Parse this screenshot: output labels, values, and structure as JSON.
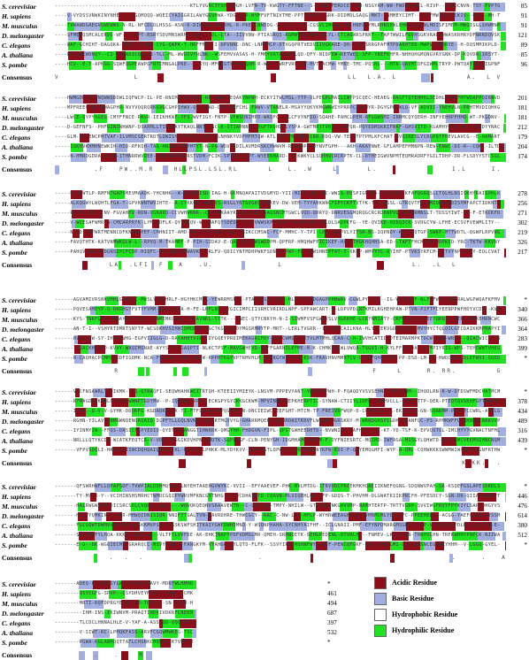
{
  "colors": {
    "acidic": "#8b0f1a",
    "basic": "#a2aee0",
    "hydrophobic": "#ffffff",
    "hydrophilic": "#22e022"
  },
  "species": [
    "S. cerevisiae",
    "H. sapiens",
    "M. musculus",
    "D. melongaster",
    "C. elegans",
    "A. thaliana",
    "S. pombe"
  ],
  "consensus_label": "Consensus",
  "blocks": [
    {
      "numbers": [
        "85",
        "91",
        "91",
        "121",
        "89",
        "85",
        "96"
      ],
      "consensus_text": "V               L                                          LL  L.A. L              A.  L V   ...LGWALG   W   L    .LL   ..LV..P"
    },
    {
      "numbers": [
        "201",
        "181",
        "181",
        "212",
        "179",
        "204",
        "174"
      ],
      "consensus_text": "        .F   PW..M.R    HLLPSL.LSL.RL      L   L. .W    L      L.               I.L     I.  IFL.L.R   F"
    },
    {
      "numbers": [
        "278",
        "256",
        "271",
        "302",
        "219",
        "326",
        "217"
      ],
      "consensus_text": "           LA  .LFI  F   A   .U.             L                          L.  .L  L"
    },
    {
      "numbers": [
        "*",
        "340",
        "366",
        "364",
        "283",
        "399",
        "*"
      ],
      "consensus_text": "            R                                                   F    L     R. RR.        G   P"
    },
    {
      "numbers": [
        "*",
        "378",
        "434",
        "489",
        "316",
        "439",
        "*"
      ],
      "consensus_text": "                                                                                  K KK.  ."
    },
    {
      "numbers": [
        "*",
        "446",
        "476",
        "614",
        "380",
        "512",
        "*"
      ],
      "consensus_text": "           .  .  .                       .                                      .     .   A."
    },
    {
      "numbers": [
        "*",
        "461",
        "494",
        "687",
        "397",
        "532",
        "*"
      ],
      "consensus_text": "        .   .    R"
    }
  ],
  "legend": [
    {
      "label": "Acidic Residue",
      "color": "#8b0f1a"
    },
    {
      "label": "Basic Residue",
      "color": "#a2aee0"
    },
    {
      "label": "Hydrophobic Residue",
      "color": "#ffffff"
    },
    {
      "label": "Hydrophilic Residue",
      "color": "#22e022"
    }
  ]
}
